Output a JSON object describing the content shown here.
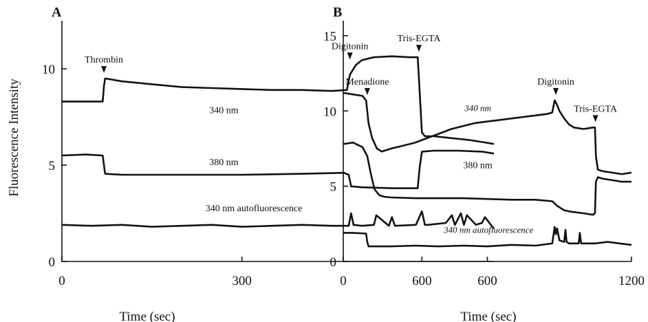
{
  "figure": {
    "ylabel": "Fluorescence Intensity"
  },
  "chart_data": [
    {
      "type": "line",
      "panel": "A",
      "xlabel": "Time (sec)",
      "ylabel": "Fluorescence Intensity",
      "xlim": [
        0,
        720
      ],
      "ylim": [
        0,
        12.5
      ],
      "xticks": [
        0,
        300,
        600
      ],
      "yticks": [
        0,
        5,
        10
      ],
      "xtick_labels": [
        "0",
        "300",
        "600"
      ],
      "ytick_labels": [
        "0",
        "5",
        "10"
      ],
      "events": [
        {
          "label": "Thrombin",
          "x": 70
        },
        {
          "label": "Digitonin",
          "x": 480
        },
        {
          "label": "Tris-EGTA",
          "x": 595
        }
      ],
      "series": [
        {
          "name": "340 nm",
          "label_style": "normal",
          "label_pos": [
            270,
            7.7
          ],
          "x": [
            0,
            68,
            70,
            72,
            100,
            150,
            200,
            250,
            300,
            350,
            400,
            450,
            475,
            480,
            490,
            500,
            520,
            550,
            580,
            593,
            596,
            600,
            605,
            620,
            650,
            680,
            700,
            720
          ],
          "y": [
            8.3,
            8.3,
            9.1,
            9.5,
            9.35,
            9.2,
            9.05,
            9.0,
            8.95,
            8.9,
            8.9,
            8.85,
            8.9,
            9.7,
            10.2,
            10.45,
            10.6,
            10.65,
            10.6,
            10.6,
            9.0,
            6.7,
            6.5,
            6.5,
            6.4,
            6.3,
            6.2,
            6.1
          ]
        },
        {
          "name": "380 nm",
          "label_style": "normal",
          "label_pos": [
            270,
            5.0
          ],
          "x": [
            0,
            40,
            68,
            70,
            72,
            100,
            200,
            300,
            400,
            470,
            478,
            482,
            500,
            550,
            593,
            596,
            600,
            620,
            660,
            700,
            720
          ],
          "y": [
            5.5,
            5.55,
            5.5,
            5.0,
            4.55,
            4.5,
            4.5,
            4.5,
            4.55,
            4.6,
            4.5,
            3.9,
            3.85,
            3.8,
            3.8,
            4.8,
            5.7,
            5.75,
            5.75,
            5.7,
            5.6
          ]
        },
        {
          "name": "340 nm autofluorescence",
          "label_style": "normal",
          "label_pos": [
            320,
            2.6
          ],
          "x": [
            0,
            50,
            100,
            150,
            200,
            250,
            300,
            350,
            400,
            450,
            478,
            482,
            486,
            500,
            520,
            524,
            545,
            550,
            555,
            590,
            600,
            605,
            610,
            640,
            650,
            655,
            665,
            670,
            675,
            690,
            700,
            705,
            720
          ],
          "y": [
            1.9,
            1.85,
            1.9,
            1.8,
            1.85,
            1.9,
            1.8,
            1.85,
            1.9,
            1.85,
            1.85,
            2.5,
            1.9,
            1.85,
            1.9,
            2.4,
            1.85,
            2.3,
            1.85,
            1.9,
            2.6,
            1.9,
            1.9,
            2.0,
            2.4,
            1.9,
            2.5,
            1.9,
            2.4,
            1.9,
            2.0,
            2.3,
            1.7
          ]
        }
      ]
    },
    {
      "type": "line",
      "panel": "B",
      "xlabel": "Time (sec)",
      "ylabel": "",
      "xlim": [
        0,
        1200
      ],
      "ylim": [
        0,
        16
      ],
      "xticks": [
        0,
        600,
        1200
      ],
      "yticks": [
        0,
        5,
        10,
        15
      ],
      "xtick_labels": [
        "0",
        "600",
        "1200"
      ],
      "ytick_labels": [
        "0",
        "5",
        "10",
        "15"
      ],
      "events": [
        {
          "label": "Menadione",
          "x": 100
        },
        {
          "label": "Digitonin",
          "x": 885
        },
        {
          "label": "Tris-EGTA",
          "x": 1050
        }
      ],
      "series": [
        {
          "name": "340 nm",
          "label_style": "italic",
          "label_pos": [
            560,
            10.0
          ],
          "x": [
            0,
            40,
            80,
            95,
            105,
            120,
            140,
            160,
            200,
            250,
            300,
            350,
            400,
            450,
            500,
            550,
            600,
            650,
            700,
            750,
            800,
            850,
            870,
            880,
            890,
            900,
            920,
            940,
            960,
            1000,
            1040,
            1048,
            1052,
            1060,
            1080,
            1120,
            1160,
            1200
          ],
          "y": [
            11.2,
            11.1,
            11.0,
            10.7,
            9.2,
            8.2,
            7.5,
            7.3,
            7.5,
            7.7,
            7.9,
            8.2,
            8.5,
            8.8,
            9.0,
            9.2,
            9.3,
            9.4,
            9.5,
            9.6,
            9.7,
            9.8,
            9.9,
            10.7,
            10.4,
            10.0,
            9.5,
            9.1,
            8.9,
            8.8,
            8.9,
            8.9,
            7.0,
            6.1,
            6.0,
            5.9,
            5.8,
            5.9
          ]
        },
        {
          "name": "380 nm",
          "label_style": "normal",
          "label_pos": [
            560,
            6.2
          ],
          "x": [
            0,
            40,
            80,
            100,
            115,
            130,
            150,
            170,
            200,
            300,
            400,
            500,
            600,
            700,
            800,
            870,
            890,
            900,
            920,
            950,
            1000,
            1040,
            1048,
            1052,
            1060,
            1080,
            1120,
            1160,
            1200
          ],
          "y": [
            7.8,
            7.9,
            7.6,
            7.0,
            5.8,
            4.8,
            4.4,
            4.3,
            4.25,
            4.2,
            4.2,
            4.2,
            4.15,
            4.1,
            4.1,
            4.0,
            3.7,
            3.6,
            3.4,
            3.3,
            3.2,
            3.1,
            3.2,
            5.3,
            5.6,
            5.5,
            5.4,
            5.3,
            5.3
          ]
        },
        {
          "name": "340 nm autofluorescence",
          "label_style": "italic",
          "label_pos": [
            605,
            1.9
          ],
          "x": [
            0,
            40,
            95,
            100,
            105,
            120,
            200,
            300,
            400,
            500,
            600,
            700,
            800,
            870,
            880,
            885,
            890,
            900,
            920,
            925,
            930,
            940,
            980,
            985,
            990,
            1000,
            1050,
            1100,
            1150,
            1200
          ],
          "y": [
            1.9,
            1.9,
            1.85,
            1.3,
            1.0,
            1.0,
            1.0,
            1.05,
            1.0,
            1.05,
            1.0,
            1.1,
            1.05,
            1.2,
            2.3,
            1.8,
            2.2,
            1.4,
            1.3,
            2.1,
            1.3,
            1.2,
            1.2,
            1.9,
            1.2,
            1.2,
            1.2,
            1.3,
            1.2,
            1.1
          ]
        }
      ]
    }
  ]
}
